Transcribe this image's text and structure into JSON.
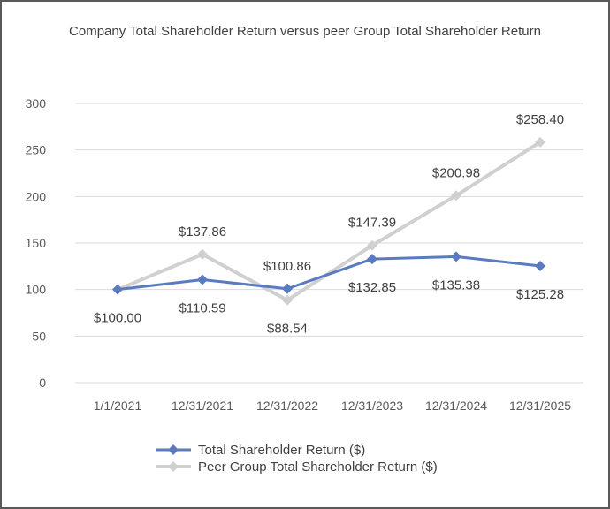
{
  "chart_data": {
    "type": "line",
    "title": "Company Total Shareholder Return versus peer Group Total Shareholder Return",
    "categories": [
      "1/1/2021",
      "12/31/2021",
      "12/31/2022",
      "12/31/2023",
      "12/31/2024",
      "12/31/2025"
    ],
    "ylim": [
      0,
      300
    ],
    "yticks": [
      "0",
      "50",
      "100",
      "150",
      "200",
      "250",
      "300"
    ],
    "grid": true,
    "legend_position": "bottom",
    "series": [
      {
        "name": "Total Shareholder Return ($)",
        "color": "#5b7bc0",
        "values": [
          100.0,
          110.59,
          100.86,
          132.85,
          135.38,
          125.28
        ],
        "labels": [
          "$100.00",
          "$110.59",
          "$100.86",
          "$132.85",
          "$135.38",
          "$125.28"
        ]
      },
      {
        "name": "Peer Group Total Shareholder Return ($)",
        "color": "#d0d0d0",
        "values": [
          100.0,
          137.86,
          88.54,
          147.39,
          200.98,
          258.4
        ],
        "labels": [
          "$100.00",
          "$137.86",
          "$88.54",
          "$147.39",
          "$200.98",
          "$258.40"
        ]
      }
    ]
  }
}
